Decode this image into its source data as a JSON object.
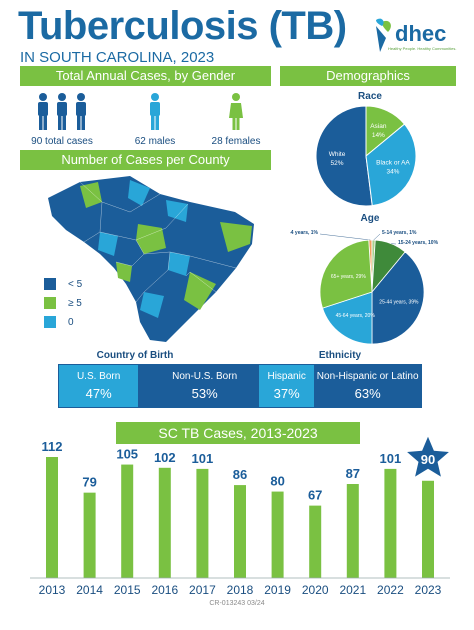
{
  "header": {
    "title": "Tuberculosis (TB)",
    "subtitle": "IN SOUTH CAROLINA, 2023",
    "logo_text": "dhec",
    "logo_tagline": "Healthy People. Healthy Communities."
  },
  "gender": {
    "banner": "Total Annual Cases, by Gender",
    "total_label": "90 total cases",
    "males_label": "62 males",
    "females_label": "28 females"
  },
  "demographics": {
    "banner": "Demographics",
    "race_title": "Race",
    "age_title": "Age"
  },
  "county": {
    "banner": "Number of Cases per County",
    "legend": [
      {
        "label": "< 5",
        "color": "#1b5d9a"
      },
      {
        "label": "≥ 5",
        "color": "#7ac142"
      },
      {
        "label": "0",
        "color": "#29a6d8"
      }
    ]
  },
  "birth": {
    "title": "Country of Birth",
    "us_label": "U.S. Born",
    "us_pct": "47%",
    "non_label": "Non-U.S. Born",
    "non_pct": "53%"
  },
  "ethnicity": {
    "title": "Ethnicity",
    "his_label": "Hispanic",
    "his_pct": "37%",
    "non_label": "Non-Hispanic or Latino",
    "non_pct": "63%"
  },
  "trend": {
    "banner": "SC TB Cases, 2013-2023"
  },
  "footer": {
    "code": "CR-013243    03/24"
  },
  "colors": {
    "blue_dark": "#1b5d9a",
    "blue_light": "#29a6d8",
    "green": "#7ac142",
    "green_dark": "#3f8a3a",
    "orange": "#f0a05a"
  },
  "chart_data": [
    {
      "type": "pie",
      "title": "Race",
      "slices": [
        {
          "label": "White",
          "pct": "52%",
          "value": 52,
          "color": "#1b5d9a"
        },
        {
          "label": "Asian",
          "pct": "14%",
          "value": 14,
          "color": "#7ac142"
        },
        {
          "label": "Black or AA",
          "pct": "34%",
          "value": 34,
          "color": "#29a6d8"
        }
      ]
    },
    {
      "type": "pie",
      "title": "Age",
      "slices": [
        {
          "label": "0-4 years, 1%",
          "value": 1,
          "color": "#f0a05a"
        },
        {
          "label": "5-14 years, 1%",
          "value": 1,
          "color": "#a8d08d"
        },
        {
          "label": "15-24 years, 10%",
          "value": 10,
          "color": "#3f8a3a"
        },
        {
          "label": "25-44 years, 39%",
          "value": 39,
          "color": "#1b5d9a"
        },
        {
          "label": "45-64 years, 20%",
          "value": 20,
          "color": "#29a6d8"
        },
        {
          "label": "65+ years, 29%",
          "value": 29,
          "color": "#7ac142"
        }
      ]
    },
    {
      "type": "bar",
      "title": "SC TB Cases, 2013-2023",
      "categories": [
        "2013",
        "2014",
        "2015",
        "2016",
        "2017",
        "2018",
        "2019",
        "2020",
        "2021",
        "2022",
        "2023"
      ],
      "values": [
        112,
        79,
        105,
        102,
        101,
        86,
        80,
        67,
        87,
        101,
        90
      ],
      "highlight": "2023",
      "ylim": [
        0,
        112
      ]
    }
  ]
}
